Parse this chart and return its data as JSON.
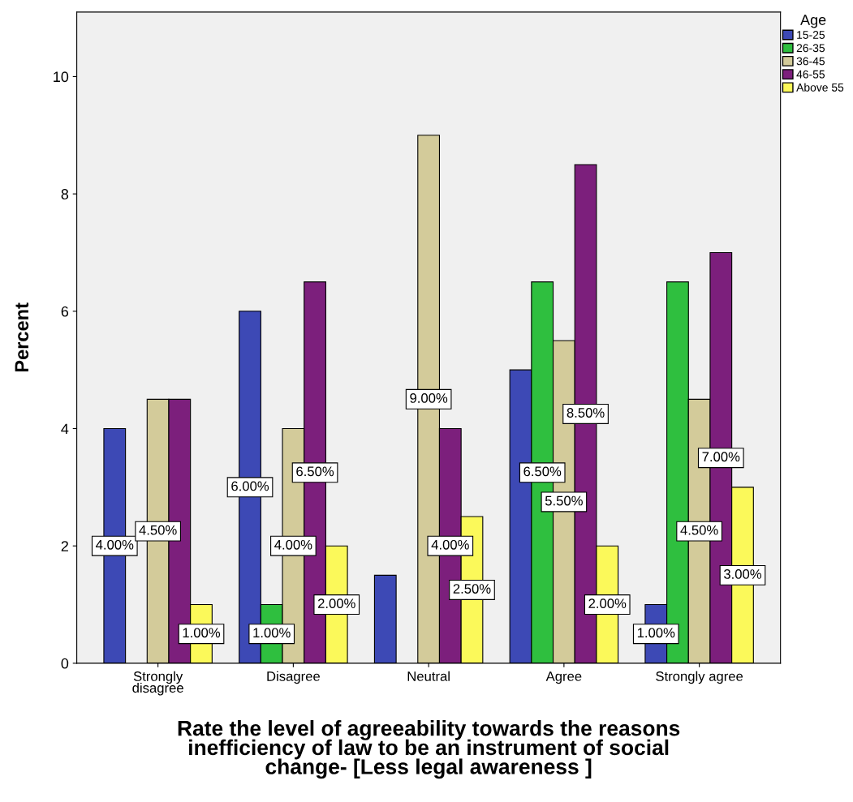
{
  "chart_data": {
    "type": "bar",
    "xlabel": "Rate the level of agreeability towards the reasons\ninefficiency of law to be an instrument of social\nchange- [Less legal awareness ]",
    "ylabel": "Percent",
    "legend_title": "Age",
    "legend": "right",
    "categories": [
      "Strongly\ndisagree",
      "Disagree",
      "Neutral",
      "Agree",
      "Strongly agree"
    ],
    "series": [
      {
        "name": "15-25",
        "color": "#3d49b5",
        "values": [
          4,
          6,
          1.5,
          5,
          1
        ],
        "value_labels": [
          "4.00%",
          "6.00%",
          null,
          null,
          "1.00%"
        ]
      },
      {
        "name": "26-35",
        "color": "#2fbf3f",
        "values": [
          null,
          1,
          null,
          6.5,
          6.5
        ],
        "value_labels": [
          null,
          "1.00%",
          null,
          "6.50%",
          null
        ]
      },
      {
        "name": "36-45",
        "color": "#d3cb9a",
        "values": [
          4.5,
          4,
          9,
          5.5,
          4.5
        ],
        "value_labels": [
          "4.50%",
          "4.00%",
          "9.00%",
          "5.50%",
          "4.50%"
        ]
      },
      {
        "name": "46-55",
        "color": "#7c1f7c",
        "values": [
          4.5,
          6.5,
          4,
          8.5,
          7
        ],
        "value_labels": [
          null,
          "6.50%",
          "4.00%",
          "8.50%",
          "7.00%"
        ]
      },
      {
        "name": "Above 55",
        "color": "#fbf95a",
        "values": [
          1,
          2,
          2.5,
          2,
          3
        ],
        "value_labels": [
          "1.00%",
          "2.00%",
          "2.50%",
          "2.00%",
          "3.00%"
        ]
      }
    ],
    "ylim": [
      0,
      11.1
    ],
    "yticks": [
      0,
      2,
      4,
      6,
      8,
      10
    ],
    "grid": false
  }
}
